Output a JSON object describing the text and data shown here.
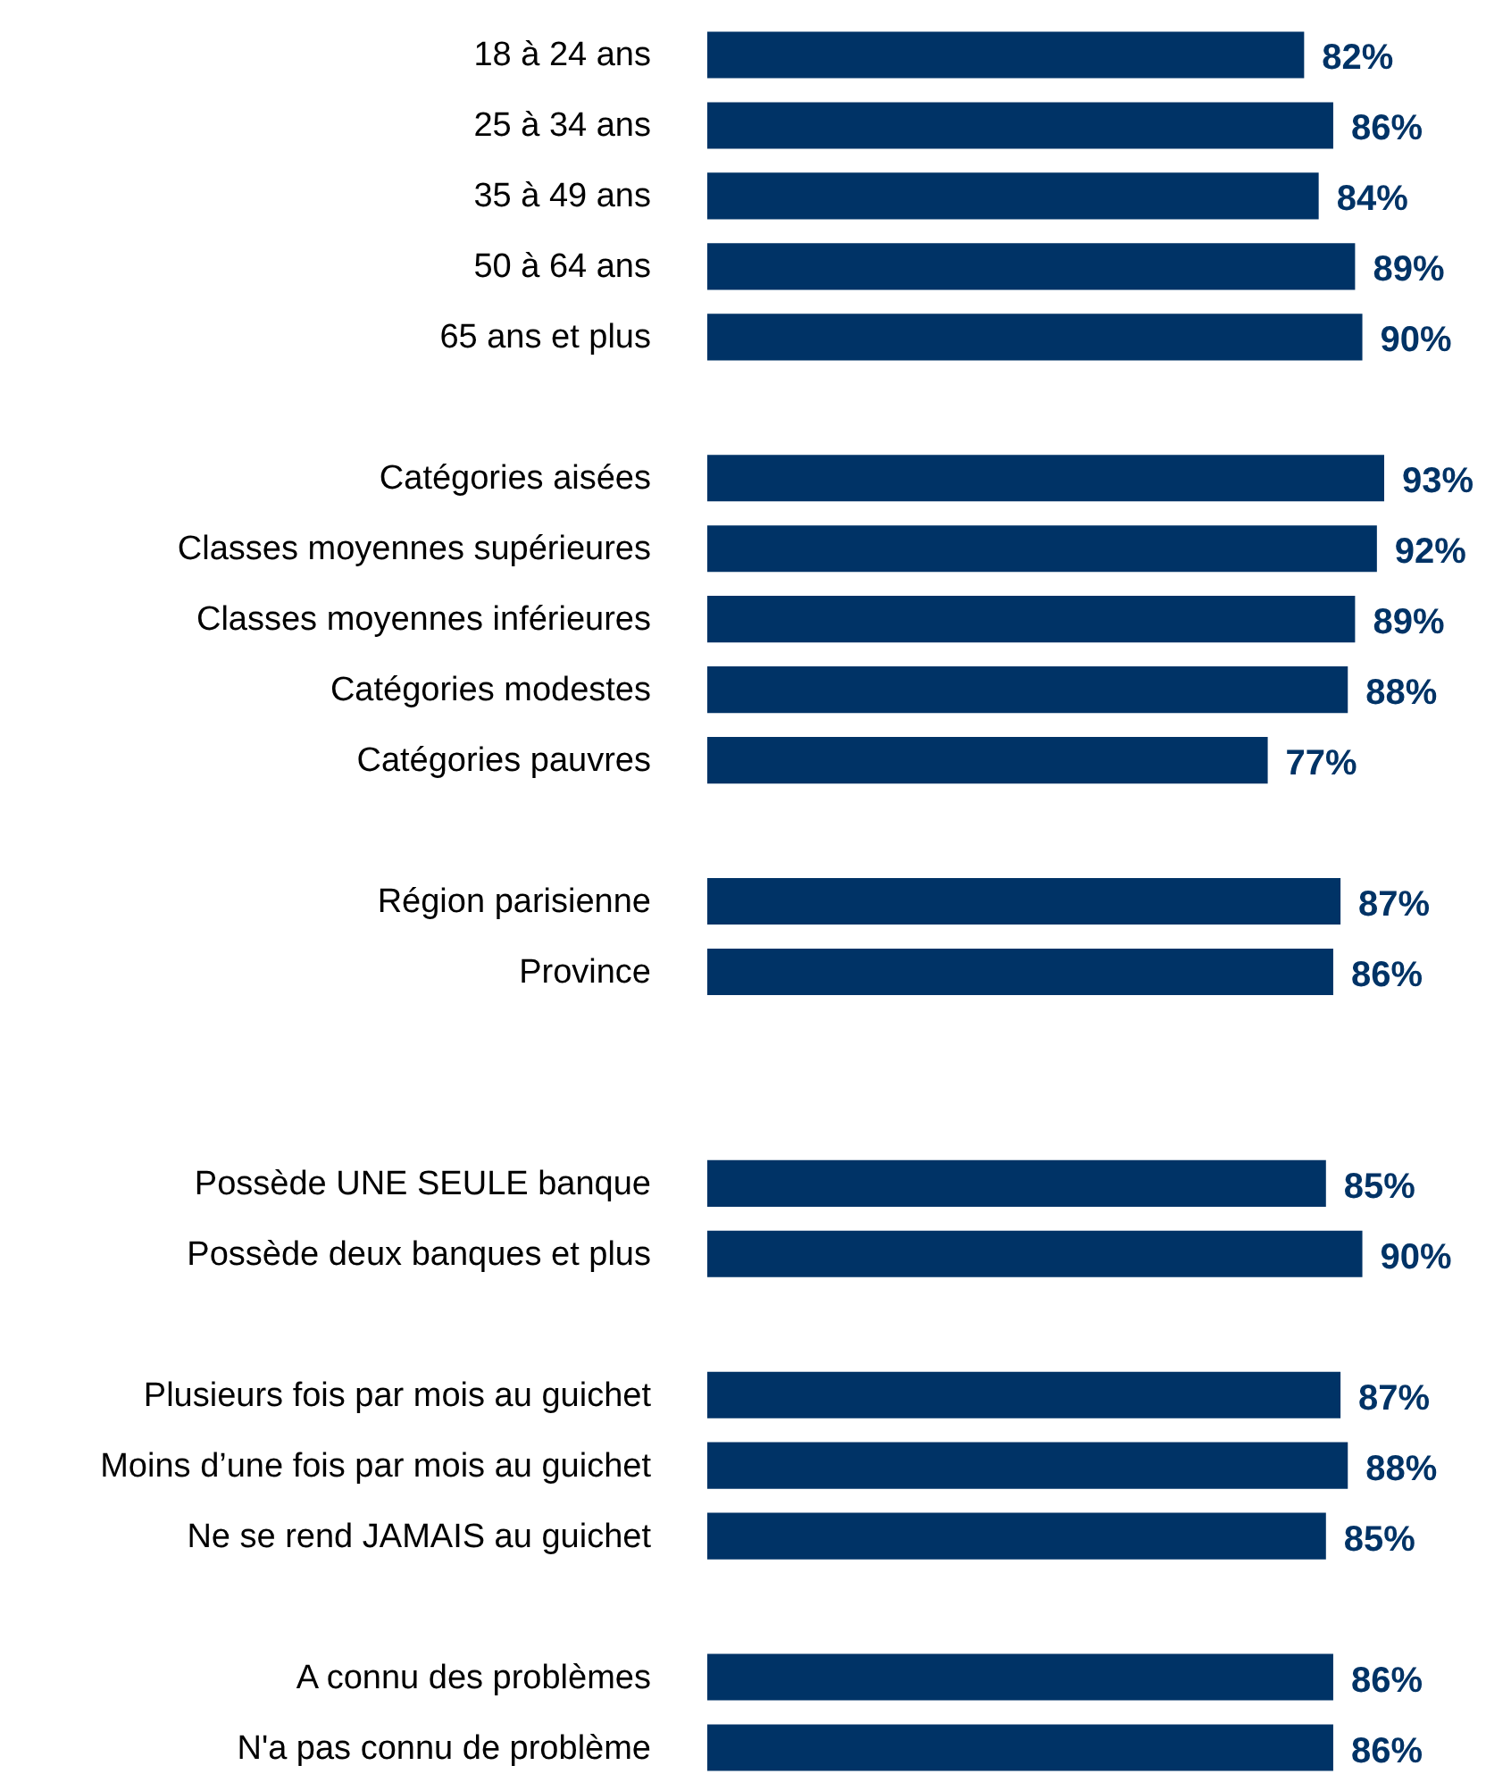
{
  "chart_data": {
    "type": "bar",
    "orientation": "horizontal",
    "data_labels": true,
    "tick_labels": "y",
    "color": "#003366",
    "categories": [
      "18 à 24 ans",
      "25 à 34 ans",
      "35 à 49 ans",
      "50 à 64 ans",
      "65 ans et plus",
      null,
      "Catégories aisées",
      "Classes moyennes supérieures",
      "Classes moyennes inférieures",
      "Catégories modestes",
      "Catégories pauvres",
      null,
      "Région parisienne",
      "Province",
      null,
      null,
      "Possède UNE SEULE banque",
      "Possède deux banques et plus",
      null,
      "Plusieurs fois par mois  au guichet",
      "Moins d’une fois par mois au guichet",
      "Ne se rend JAMAIS au guichet",
      null,
      "A connu des problèmes",
      "N'a pas connu de problème"
    ],
    "values": [
      82,
      86,
      84,
      89,
      90,
      null,
      93,
      92,
      89,
      88,
      77,
      null,
      87,
      86,
      null,
      null,
      85,
      90,
      null,
      87,
      88,
      85,
      null,
      86,
      86
    ],
    "value_labels": [
      "82%",
      "86%",
      "84%",
      "89%",
      "90%",
      null,
      "93%",
      "92%",
      "89%",
      "88%",
      "77%",
      null,
      "87%",
      "86%",
      null,
      null,
      "85%",
      "90%",
      null,
      "87%",
      "88%",
      "85%",
      null,
      "86%",
      "86%"
    ]
  }
}
